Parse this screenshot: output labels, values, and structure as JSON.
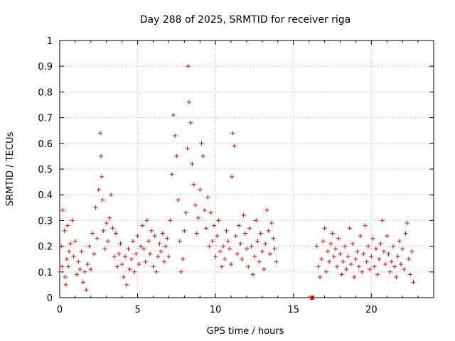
{
  "chart_data": {
    "type": "scatter",
    "title": "Day 288 of 2025, SRMTID for receiver riga",
    "xlabel": "GPS time / hours",
    "ylabel": "SRMTID / TECUs",
    "xlim": [
      0,
      24
    ],
    "ylim": [
      0,
      1
    ],
    "x_ticks": [
      0,
      5,
      10,
      15,
      20
    ],
    "x_tick_labels": [
      "0",
      "5",
      "10",
      "15",
      "20"
    ],
    "y_ticks": [
      0,
      0.1,
      0.2,
      0.3,
      0.4,
      0.5,
      0.6,
      0.7,
      0.8,
      0.9,
      1.0
    ],
    "y_tick_labels": [
      "0",
      "0.1",
      "0.2",
      "0.3",
      "0.4",
      "0.5",
      "0.6",
      "0.7",
      "0.8",
      "0.9",
      "1"
    ],
    "grid": true,
    "marker": "+",
    "color": "#e00000",
    "series": [
      {
        "name": "SRMTID",
        "x": [
          0.0,
          0.1,
          0.15,
          0.2,
          0.3,
          0.35,
          0.4,
          0.45,
          0.5,
          0.55,
          0.6,
          0.7,
          0.8,
          0.9,
          1.0,
          1.1,
          1.2,
          1.3,
          1.4,
          1.5,
          1.6,
          1.7,
          1.8,
          1.9,
          2.0,
          2.1,
          2.2,
          2.3,
          2.4,
          2.5,
          2.6,
          2.65,
          2.7,
          2.75,
          2.8,
          2.9,
          3.0,
          3.1,
          3.2,
          3.3,
          3.4,
          3.5,
          3.6,
          3.7,
          3.8,
          3.9,
          4.0,
          4.1,
          4.2,
          4.3,
          4.4,
          4.5,
          4.6,
          4.7,
          4.8,
          4.9,
          5.0,
          5.1,
          5.2,
          5.3,
          5.4,
          5.5,
          5.6,
          5.7,
          5.8,
          5.9,
          6.0,
          6.1,
          6.2,
          6.3,
          6.4,
          6.5,
          6.6,
          6.7,
          6.8,
          6.9,
          7.0,
          7.1,
          7.2,
          7.3,
          7.4,
          7.5,
          7.6,
          7.7,
          7.8,
          7.9,
          8.0,
          8.1,
          8.2,
          8.25,
          8.3,
          8.4,
          8.5,
          8.6,
          8.7,
          8.8,
          8.9,
          9.0,
          9.1,
          9.2,
          9.3,
          9.4,
          9.5,
          9.6,
          9.7,
          9.8,
          9.9,
          10.0,
          10.1,
          10.2,
          10.3,
          10.4,
          10.5,
          10.6,
          10.7,
          10.8,
          10.9,
          11.0,
          11.05,
          11.1,
          11.2,
          11.3,
          11.4,
          11.5,
          11.6,
          11.7,
          11.8,
          11.9,
          12.0,
          12.1,
          12.2,
          12.3,
          12.4,
          12.5,
          12.6,
          12.7,
          12.8,
          12.9,
          13.0,
          13.1,
          13.2,
          13.3,
          13.4,
          13.5,
          13.6,
          13.7,
          13.8,
          13.9,
          16.2,
          16.5,
          16.6,
          16.7,
          16.8,
          16.9,
          17.0,
          17.1,
          17.2,
          17.3,
          17.4,
          17.5,
          17.6,
          17.7,
          17.8,
          17.9,
          18.0,
          18.1,
          18.2,
          18.3,
          18.4,
          18.5,
          18.6,
          18.7,
          18.8,
          18.9,
          19.0,
          19.1,
          19.2,
          19.3,
          19.4,
          19.5,
          19.6,
          19.7,
          19.8,
          19.9,
          20.0,
          20.1,
          20.2,
          20.3,
          20.4,
          20.5,
          20.6,
          20.7,
          20.8,
          20.9,
          21.0,
          21.1,
          21.2,
          21.3,
          21.4,
          21.5,
          21.6,
          21.7,
          21.8,
          21.9,
          22.0,
          22.1,
          22.2,
          22.3,
          22.4,
          22.5,
          22.6,
          22.7
        ],
        "y": [
          0.1,
          0.2,
          0.12,
          0.34,
          0.26,
          0.08,
          0.05,
          0.15,
          0.28,
          0.12,
          0.18,
          0.21,
          0.3,
          0.16,
          0.22,
          0.09,
          0.14,
          0.11,
          0.18,
          0.06,
          0.1,
          0.03,
          0.13,
          0.2,
          0.11,
          0.25,
          0.17,
          0.35,
          0.23,
          0.42,
          0.64,
          0.55,
          0.47,
          0.38,
          0.26,
          0.19,
          0.29,
          0.22,
          0.31,
          0.4,
          0.27,
          0.16,
          0.25,
          0.12,
          0.17,
          0.21,
          0.13,
          0.08,
          0.16,
          0.05,
          0.19,
          0.11,
          0.15,
          0.22,
          0.1,
          0.17,
          0.24,
          0.13,
          0.2,
          0.28,
          0.19,
          0.14,
          0.3,
          0.22,
          0.17,
          0.26,
          0.12,
          0.24,
          0.1,
          0.16,
          0.21,
          0.18,
          0.25,
          0.14,
          0.2,
          0.23,
          0.16,
          0.3,
          0.48,
          0.71,
          0.63,
          0.55,
          0.38,
          0.22,
          0.1,
          0.15,
          0.26,
          0.33,
          0.58,
          0.9,
          0.76,
          0.68,
          0.52,
          0.44,
          0.36,
          0.25,
          0.31,
          0.42,
          0.6,
          0.55,
          0.34,
          0.27,
          0.39,
          0.2,
          0.33,
          0.22,
          0.28,
          0.16,
          0.24,
          0.3,
          0.18,
          0.12,
          0.2,
          0.15,
          0.26,
          0.22,
          0.19,
          0.13,
          0.47,
          0.64,
          0.59,
          0.24,
          0.17,
          0.28,
          0.21,
          0.15,
          0.32,
          0.25,
          0.19,
          0.12,
          0.27,
          0.2,
          0.09,
          0.16,
          0.3,
          0.22,
          0.14,
          0.25,
          0.18,
          0.11,
          0.21,
          0.34,
          0.26,
          0.17,
          0.29,
          0.23,
          0.19,
          0.14,
          0.0,
          0.2,
          0.12,
          0.08,
          0.15,
          0.22,
          0.27,
          0.1,
          0.18,
          0.14,
          0.21,
          0.25,
          0.16,
          0.19,
          0.12,
          0.23,
          0.17,
          0.09,
          0.14,
          0.2,
          0.11,
          0.16,
          0.27,
          0.13,
          0.21,
          0.08,
          0.15,
          0.18,
          0.12,
          0.24,
          0.1,
          0.17,
          0.28,
          0.14,
          0.2,
          0.11,
          0.16,
          0.23,
          0.12,
          0.19,
          0.09,
          0.15,
          0.21,
          0.3,
          0.18,
          0.13,
          0.24,
          0.17,
          0.1,
          0.14,
          0.2,
          0.12,
          0.08,
          0.16,
          0.22,
          0.13,
          0.19,
          0.11,
          0.25,
          0.29,
          0.15,
          0.09,
          0.18,
          0.06
        ]
      }
    ]
  }
}
